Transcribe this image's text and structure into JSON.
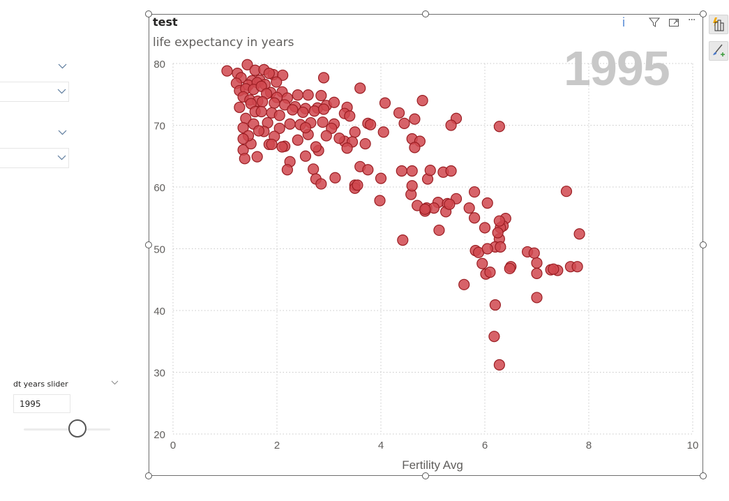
{
  "visual": {
    "title": "test",
    "subtitle": "life expectancy in years",
    "play_axis_label": "1995",
    "header_icons": [
      "info-icon",
      "filter-icon",
      "focus-mode-icon",
      "more-options-icon"
    ],
    "info_glyph": "i",
    "more_glyph": "···"
  },
  "side_panel": {
    "buttons": [
      "format-lightning-icon",
      "analytics-brush-icon"
    ]
  },
  "slicers": [
    {
      "type": "dropdown",
      "value": ""
    },
    {
      "type": "dropdown",
      "value": ""
    }
  ],
  "year_slider": {
    "title": "dt years slider",
    "value": "1995",
    "position_fraction": 0.62
  },
  "colors": {
    "point_fill": "#d0484f",
    "point_stroke": "#9a1d22",
    "watermark": "#c8c8c8",
    "grid": "#c8c8c8",
    "axis_text": "#605e5c"
  },
  "chart_data": {
    "type": "scatter",
    "title": "test",
    "subtitle": "life expectancy in years",
    "xlabel": "Fertility Avg",
    "ylabel": "life expectancy in years",
    "xlim": [
      0,
      10
    ],
    "ylim": [
      20,
      80
    ],
    "xticks": [
      "0",
      "2",
      "4",
      "6",
      "8",
      "10"
    ],
    "yticks": [
      "20",
      "30",
      "40",
      "50",
      "60",
      "70",
      "80"
    ],
    "grid": true,
    "play_axis_value": "1995",
    "x": [
      1.04,
      1.43,
      1.24,
      1.31,
      1.58,
      1.75,
      1.93,
      1.22,
      1.52,
      1.67,
      1.85,
      2.11,
      1.45,
      1.62,
      1.77,
      1.99,
      1.28,
      1.4,
      1.55,
      1.7,
      1.88,
      2.1,
      2.9,
      1.35,
      1.48,
      1.63,
      1.8,
      2.0,
      2.2,
      2.4,
      2.6,
      2.85,
      3.6,
      1.28,
      1.5,
      1.72,
      1.95,
      2.15,
      2.35,
      2.55,
      2.78,
      2.95,
      3.1,
      3.35,
      1.4,
      1.58,
      1.7,
      1.9,
      2.05,
      2.3,
      2.5,
      2.72,
      2.9,
      3.3,
      1.35,
      1.55,
      1.82,
      2.05,
      2.25,
      2.45,
      2.65,
      2.88,
      3.1,
      3.4,
      3.75,
      4.45,
      4.8,
      5.45,
      6.28,
      1.35,
      1.5,
      1.75,
      1.95,
      2.15,
      2.4,
      2.6,
      2.8,
      3.05,
      3.3,
      3.5,
      3.8,
      4.08,
      4.35,
      4.65,
      5.35,
      1.45,
      1.65,
      1.85,
      2.1,
      2.55,
      2.75,
      2.95,
      3.2,
      3.45,
      3.7,
      4.05,
      4.6,
      4.75,
      1.38,
      1.62,
      1.9,
      2.25,
      2.7,
      3.35,
      3.6,
      4.0,
      4.65,
      4.9,
      5.2,
      1.35,
      2.2,
      2.55,
      2.75,
      3.5,
      3.75,
      4.4,
      4.6,
      4.95,
      5.35,
      2.85,
      3.12,
      3.5,
      3.55,
      4.58,
      4.85,
      5.1,
      5.8,
      6.4,
      3.98,
      4.7,
      4.88,
      5.02,
      5.28,
      5.45,
      6.0,
      4.6,
      4.85,
      5.25,
      5.32,
      5.7,
      6.05,
      5.12,
      4.42,
      6.35,
      6.3,
      6.28,
      6.2,
      5.82,
      6.25,
      7.57,
      7.82,
      5.88,
      6.02,
      6.05,
      6.3,
      6.1,
      5.8,
      5.95,
      6.28,
      6.5,
      6.48,
      6.82,
      7.0,
      6.95,
      7.0,
      7.4,
      7.27,
      7.32,
      7.65,
      7.78,
      5.6,
      7.0,
      6.2,
      6.18,
      6.28
    ],
    "y": [
      78.8,
      79.8,
      78.4,
      77.7,
      78.9,
      79.0,
      78.2,
      76.8,
      77.2,
      77.3,
      78.4,
      78.1,
      76.5,
      76.9,
      76.6,
      77.0,
      75.6,
      75.9,
      75.8,
      76.3,
      75.3,
      75.4,
      77.7,
      74.6,
      74.1,
      73.9,
      75.1,
      74.5,
      74.4,
      74.9,
      74.9,
      74.8,
      76.0,
      72.9,
      73.5,
      73.8,
      73.6,
      73.3,
      73.0,
      72.7,
      72.8,
      73.2,
      73.7,
      72.9,
      71.1,
      72.2,
      72.2,
      72.0,
      71.6,
      72.5,
      72.1,
      72.3,
      72.6,
      71.9,
      69.6,
      70.2,
      70.4,
      69.5,
      70.2,
      70.1,
      70.4,
      70.5,
      70.2,
      71.5,
      70.3,
      70.3,
      74.0,
      71.1,
      69.8,
      66.0,
      67.0,
      69.0,
      68.2,
      66.6,
      67.6,
      68.5,
      65.9,
      69.5,
      67.4,
      68.9,
      70.1,
      73.6,
      72.0,
      71.0,
      70.0,
      68.3,
      69.1,
      66.9,
      66.5,
      69.6,
      66.5,
      68.3,
      67.9,
      67.3,
      67.0,
      68.9,
      67.8,
      67.4,
      64.6,
      64.9,
      66.9,
      64.1,
      62.9,
      66.3,
      63.3,
      61.4,
      66.4,
      61.3,
      62.4,
      67.8,
      62.8,
      65.0,
      61.3,
      60.3,
      62.8,
      62.6,
      62.6,
      62.7,
      62.6,
      60.5,
      61.5,
      59.8,
      60.3,
      58.8,
      56.1,
      57.5,
      59.2,
      54.9,
      57.8,
      57.0,
      56.6,
      56.6,
      57.3,
      58.1,
      53.4,
      60.2,
      56.4,
      56.0,
      57.2,
      56.6,
      57.4,
      53.0,
      51.4,
      53.7,
      53.4,
      51.6,
      50.3,
      49.7,
      52.6,
      59.3,
      52.4,
      49.4,
      45.9,
      50.0,
      50.3,
      46.2,
      55.0,
      47.6,
      54.5,
      47.1,
      46.8,
      49.5,
      47.7,
      49.3,
      46.0,
      46.5,
      46.6,
      46.7,
      47.1,
      47.1,
      44.2,
      42.1,
      40.9,
      35.8,
      31.2
    ]
  }
}
